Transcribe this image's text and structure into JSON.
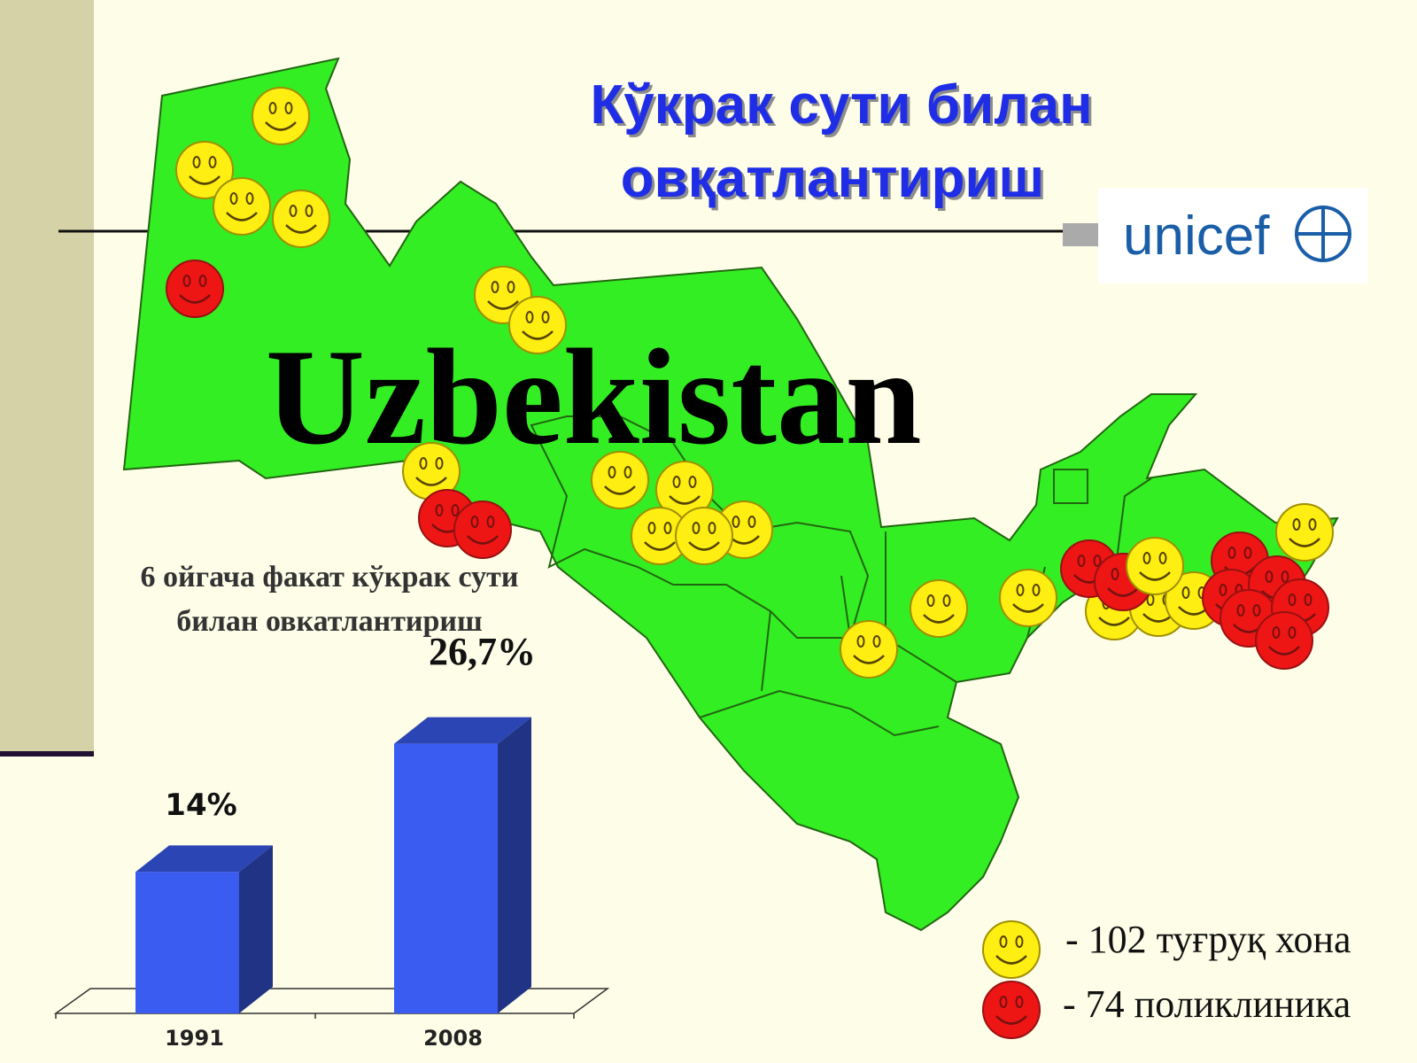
{
  "slide": {
    "title": [
      "Кўкрак сути билан",
      "овқатлантириш"
    ],
    "map_label": "Uzbekistan",
    "logo": "unicef",
    "legend": [
      "- 102 туғруқ хона",
      "- 74 поликлиника"
    ]
  },
  "chart_data": {
    "type": "bar",
    "title": [
      "6 ойгача факат кўкрак сути",
      "билан овкатлантириш"
    ],
    "categories": [
      "1991",
      "2008"
    ],
    "values": [
      14,
      26.7
    ],
    "value_labels": [
      "14%",
      "26,7%"
    ],
    "color": "#3a5cf0"
  }
}
